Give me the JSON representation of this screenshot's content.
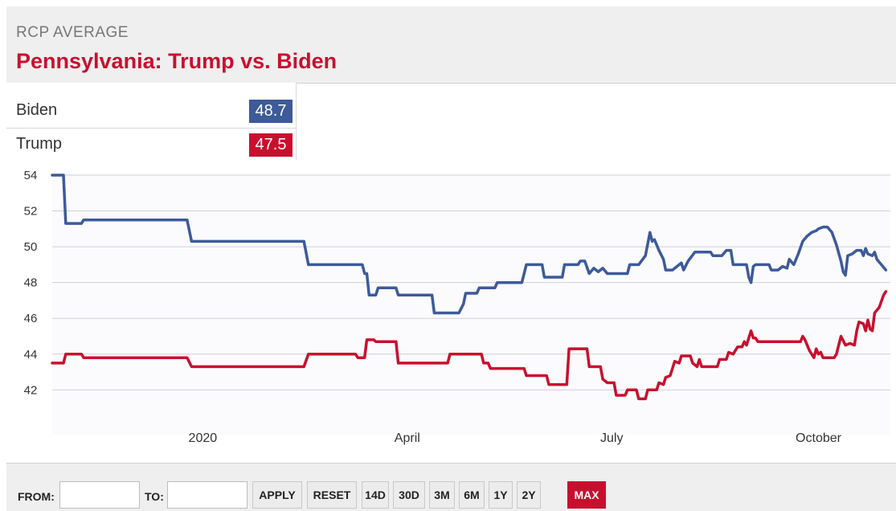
{
  "header": {
    "kicker": "RCP AVERAGE",
    "title": "Pennsylvania: Trump vs. Biden"
  },
  "candidates": [
    {
      "name": "Biden",
      "value": "48.7",
      "color": "#3d5a99"
    },
    {
      "name": "Trump",
      "value": "47.5",
      "color": "#c8102e"
    }
  ],
  "chart_data": {
    "type": "line",
    "title": "",
    "xlabel": "",
    "ylabel": "",
    "ylim": [
      39.5,
      54
    ],
    "yticks": [
      42,
      44,
      46,
      48,
      50,
      52,
      54
    ],
    "xlim": [
      "2019-10-26",
      "2020-11-02"
    ],
    "xticks": [
      {
        "date": "2020-01-01",
        "label": "2020"
      },
      {
        "date": "2020-04-01",
        "label": "April"
      },
      {
        "date": "2020-07-01",
        "label": "July"
      },
      {
        "date": "2020-10-01",
        "label": "October"
      }
    ],
    "grid": true,
    "series": [
      {
        "name": "Biden",
        "color": "#3d5a99",
        "points": [
          [
            "2019-10-26",
            54.0
          ],
          [
            "2019-10-31",
            54.0
          ],
          [
            "2019-11-01",
            51.3
          ],
          [
            "2019-11-08",
            51.3
          ],
          [
            "2019-11-09",
            51.5
          ],
          [
            "2019-12-25",
            51.5
          ],
          [
            "2019-12-27",
            50.3
          ],
          [
            "2020-01-20",
            50.3
          ],
          [
            "2020-02-15",
            50.3
          ],
          [
            "2020-02-17",
            49.0
          ],
          [
            "2020-03-07",
            49.0
          ],
          [
            "2020-03-12",
            49.0
          ],
          [
            "2020-03-13",
            48.5
          ],
          [
            "2020-03-14",
            48.5
          ],
          [
            "2020-03-15",
            47.3
          ],
          [
            "2020-03-18",
            47.3
          ],
          [
            "2020-03-19",
            47.7
          ],
          [
            "2020-03-27",
            47.7
          ],
          [
            "2020-03-28",
            47.3
          ],
          [
            "2020-04-12",
            47.3
          ],
          [
            "2020-04-13",
            46.3
          ],
          [
            "2020-04-24",
            46.3
          ],
          [
            "2020-04-26",
            46.8
          ],
          [
            "2020-04-27",
            47.4
          ],
          [
            "2020-05-02",
            47.4
          ],
          [
            "2020-05-03",
            47.7
          ],
          [
            "2020-05-10",
            47.7
          ],
          [
            "2020-05-11",
            48.0
          ],
          [
            "2020-05-22",
            48.0
          ],
          [
            "2020-05-24",
            49.0
          ],
          [
            "2020-05-31",
            49.0
          ],
          [
            "2020-06-01",
            48.3
          ],
          [
            "2020-06-09",
            48.3
          ],
          [
            "2020-06-10",
            49.0
          ],
          [
            "2020-06-16",
            49.0
          ],
          [
            "2020-06-17",
            49.2
          ],
          [
            "2020-06-19",
            49.2
          ],
          [
            "2020-06-21",
            48.5
          ],
          [
            "2020-06-23",
            48.8
          ],
          [
            "2020-06-25",
            48.6
          ],
          [
            "2020-06-27",
            48.8
          ],
          [
            "2020-06-29",
            48.5
          ],
          [
            "2020-07-08",
            48.5
          ],
          [
            "2020-07-09",
            49.0
          ],
          [
            "2020-07-13",
            49.0
          ],
          [
            "2020-07-16",
            49.5
          ],
          [
            "2020-07-18",
            50.8
          ],
          [
            "2020-07-19",
            50.3
          ],
          [
            "2020-07-20",
            50.4
          ],
          [
            "2020-07-22",
            49.8
          ],
          [
            "2020-07-24",
            49.3
          ],
          [
            "2020-07-25",
            48.7
          ],
          [
            "2020-07-28",
            48.7
          ],
          [
            "2020-07-30",
            48.9
          ],
          [
            "2020-08-01",
            49.1
          ],
          [
            "2020-08-02",
            48.7
          ],
          [
            "2020-08-04",
            49.2
          ],
          [
            "2020-08-07",
            49.7
          ],
          [
            "2020-08-14",
            49.7
          ],
          [
            "2020-08-15",
            49.5
          ],
          [
            "2020-08-19",
            49.5
          ],
          [
            "2020-08-21",
            49.8
          ],
          [
            "2020-08-23",
            49.8
          ],
          [
            "2020-08-24",
            49.0
          ],
          [
            "2020-08-30",
            49.0
          ],
          [
            "2020-08-31",
            48.3
          ],
          [
            "2020-09-01",
            48.0
          ],
          [
            "2020-09-02",
            48.9
          ],
          [
            "2020-09-03",
            49.0
          ],
          [
            "2020-09-09",
            49.0
          ],
          [
            "2020-09-10",
            48.7
          ],
          [
            "2020-09-13",
            48.7
          ],
          [
            "2020-09-15",
            48.9
          ],
          [
            "2020-09-17",
            48.8
          ],
          [
            "2020-09-18",
            49.3
          ],
          [
            "2020-09-20",
            49.0
          ],
          [
            "2020-09-22",
            49.6
          ],
          [
            "2020-09-24",
            50.3
          ],
          [
            "2020-09-26",
            50.6
          ],
          [
            "2020-09-28",
            50.8
          ],
          [
            "2020-09-30",
            50.9
          ],
          [
            "2020-10-01",
            51.0
          ],
          [
            "2020-10-03",
            51.1
          ],
          [
            "2020-10-05",
            51.1
          ],
          [
            "2020-10-07",
            50.8
          ],
          [
            "2020-10-09",
            50.1
          ],
          [
            "2020-10-11",
            49.2
          ],
          [
            "2020-10-12",
            48.6
          ],
          [
            "2020-10-13",
            48.4
          ],
          [
            "2020-10-14",
            49.5
          ],
          [
            "2020-10-16",
            49.6
          ],
          [
            "2020-10-18",
            49.8
          ],
          [
            "2020-10-20",
            49.8
          ],
          [
            "2020-10-21",
            49.5
          ],
          [
            "2020-10-22",
            49.9
          ],
          [
            "2020-10-23",
            49.6
          ],
          [
            "2020-10-25",
            49.5
          ],
          [
            "2020-10-26",
            49.7
          ],
          [
            "2020-10-27",
            49.3
          ],
          [
            "2020-10-29",
            49.0
          ],
          [
            "2020-10-31",
            48.7
          ]
        ]
      },
      {
        "name": "Trump",
        "color": "#c8102e",
        "points": [
          [
            "2019-10-26",
            43.5
          ],
          [
            "2019-10-31",
            43.5
          ],
          [
            "2019-11-01",
            44.0
          ],
          [
            "2019-11-08",
            44.0
          ],
          [
            "2019-11-09",
            43.8
          ],
          [
            "2019-12-25",
            43.8
          ],
          [
            "2019-12-27",
            43.3
          ],
          [
            "2020-01-20",
            43.3
          ],
          [
            "2020-02-15",
            43.3
          ],
          [
            "2020-02-17",
            44.0
          ],
          [
            "2020-03-09",
            44.0
          ],
          [
            "2020-03-10",
            43.8
          ],
          [
            "2020-03-13",
            43.8
          ],
          [
            "2020-03-14",
            44.8
          ],
          [
            "2020-03-17",
            44.8
          ],
          [
            "2020-03-18",
            44.7
          ],
          [
            "2020-03-27",
            44.7
          ],
          [
            "2020-03-28",
            43.5
          ],
          [
            "2020-04-19",
            43.5
          ],
          [
            "2020-04-20",
            44.0
          ],
          [
            "2020-05-04",
            44.0
          ],
          [
            "2020-05-05",
            43.5
          ],
          [
            "2020-05-07",
            43.5
          ],
          [
            "2020-05-08",
            43.2
          ],
          [
            "2020-05-23",
            43.2
          ],
          [
            "2020-05-24",
            42.8
          ],
          [
            "2020-06-02",
            42.8
          ],
          [
            "2020-06-03",
            42.3
          ],
          [
            "2020-06-11",
            42.3
          ],
          [
            "2020-06-12",
            44.3
          ],
          [
            "2020-06-20",
            44.3
          ],
          [
            "2020-06-21",
            43.3
          ],
          [
            "2020-06-26",
            43.3
          ],
          [
            "2020-06-27",
            42.6
          ],
          [
            "2020-06-29",
            42.4
          ],
          [
            "2020-07-02",
            42.4
          ],
          [
            "2020-07-03",
            41.7
          ],
          [
            "2020-07-07",
            41.7
          ],
          [
            "2020-07-08",
            42.0
          ],
          [
            "2020-07-12",
            42.0
          ],
          [
            "2020-07-13",
            41.5
          ],
          [
            "2020-07-16",
            41.5
          ],
          [
            "2020-07-17",
            42.0
          ],
          [
            "2020-07-21",
            42.0
          ],
          [
            "2020-07-22",
            42.4
          ],
          [
            "2020-07-24",
            42.3
          ],
          [
            "2020-07-25",
            42.7
          ],
          [
            "2020-07-27",
            42.8
          ],
          [
            "2020-07-28",
            43.2
          ],
          [
            "2020-07-29",
            43.6
          ],
          [
            "2020-07-31",
            43.5
          ],
          [
            "2020-08-01",
            43.9
          ],
          [
            "2020-08-05",
            43.9
          ],
          [
            "2020-08-06",
            43.5
          ],
          [
            "2020-08-08",
            43.3
          ],
          [
            "2020-08-09",
            43.7
          ],
          [
            "2020-08-10",
            43.3
          ],
          [
            "2020-08-17",
            43.3
          ],
          [
            "2020-08-18",
            43.7
          ],
          [
            "2020-08-21",
            43.7
          ],
          [
            "2020-08-22",
            44.1
          ],
          [
            "2020-08-24",
            44.0
          ],
          [
            "2020-08-26",
            44.4
          ],
          [
            "2020-08-28",
            44.4
          ],
          [
            "2020-08-29",
            44.7
          ],
          [
            "2020-08-30",
            44.5
          ],
          [
            "2020-09-01",
            45.3
          ],
          [
            "2020-09-02",
            44.9
          ],
          [
            "2020-09-03",
            44.9
          ],
          [
            "2020-09-04",
            44.7
          ],
          [
            "2020-09-23",
            44.7
          ],
          [
            "2020-09-24",
            45.0
          ],
          [
            "2020-09-25",
            44.8
          ],
          [
            "2020-09-26",
            44.5
          ],
          [
            "2020-09-27",
            44.2
          ],
          [
            "2020-09-28",
            44.0
          ],
          [
            "2020-09-29",
            43.8
          ],
          [
            "2020-09-30",
            44.3
          ],
          [
            "2020-10-01",
            44.0
          ],
          [
            "2020-10-02",
            44.1
          ],
          [
            "2020-10-03",
            43.8
          ],
          [
            "2020-10-08",
            43.8
          ],
          [
            "2020-10-09",
            44.0
          ],
          [
            "2020-10-10",
            44.5
          ],
          [
            "2020-10-11",
            45.0
          ],
          [
            "2020-10-13",
            44.5
          ],
          [
            "2020-10-15",
            44.6
          ],
          [
            "2020-10-17",
            44.5
          ],
          [
            "2020-10-18",
            45.3
          ],
          [
            "2020-10-19",
            45.8
          ],
          [
            "2020-10-21",
            45.7
          ],
          [
            "2020-10-22",
            45.3
          ],
          [
            "2020-10-23",
            45.9
          ],
          [
            "2020-10-24",
            45.4
          ],
          [
            "2020-10-25",
            45.3
          ],
          [
            "2020-10-26",
            46.3
          ],
          [
            "2020-10-28",
            46.6
          ],
          [
            "2020-10-30",
            47.3
          ],
          [
            "2020-10-31",
            47.5
          ]
        ]
      }
    ]
  },
  "footer": {
    "from_label": "FROM:",
    "to_label": "TO:",
    "from_value": "",
    "to_value": "",
    "buttons": [
      "APPLY",
      "RESET",
      "14D",
      "30D",
      "3M",
      "6M",
      "1Y",
      "2Y",
      "MAX"
    ],
    "active_button": "MAX",
    "active_color": "#c8102e"
  }
}
